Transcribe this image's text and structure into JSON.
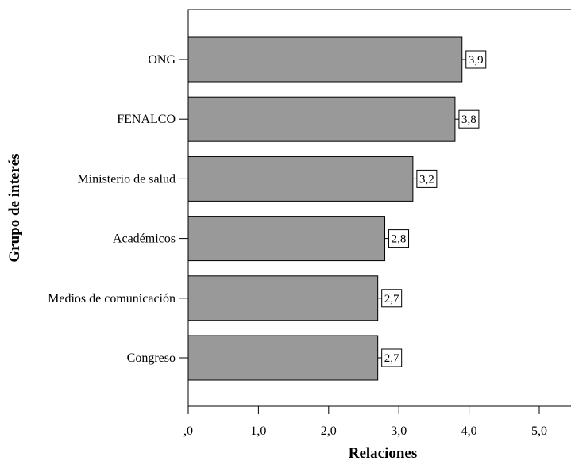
{
  "chart_data": {
    "type": "bar",
    "orientation": "horizontal",
    "categories": [
      "ONG",
      "FENALCO",
      "Ministerio de salud",
      "Académicos",
      "Medios de comunicación",
      "Congreso"
    ],
    "values": [
      3.9,
      3.8,
      3.2,
      2.8,
      2.7,
      2.7
    ],
    "value_labels": [
      "3,9",
      "3,8",
      "3,2",
      "2,8",
      "2,7",
      "2,7"
    ],
    "xlabel": "Relaciones",
    "ylabel": "Grupo de interés",
    "xlim": [
      0,
      5.5
    ],
    "xticks": [
      0,
      1,
      2,
      3,
      4,
      5
    ],
    "xtick_labels": [
      ",0",
      "1,0",
      "2,0",
      "3,0",
      "4,0",
      "5,0"
    ],
    "bar_color": "#999999",
    "grid": false
  }
}
